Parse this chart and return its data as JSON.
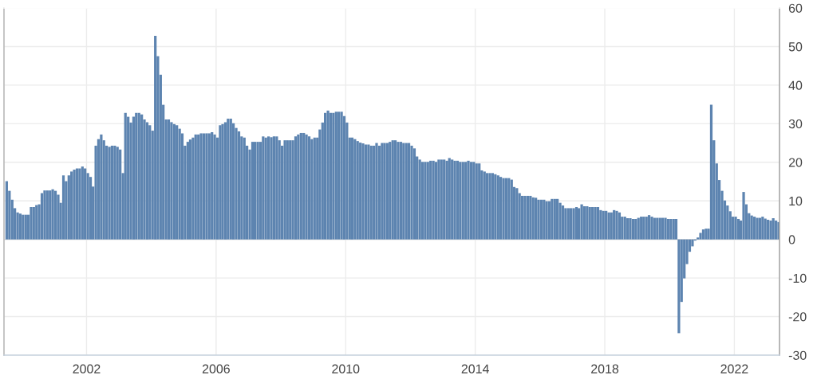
{
  "chart_data": {
    "type": "bar",
    "x": [
      "1999-07",
      "1999-08",
      "1999-09",
      "1999-10",
      "1999-11",
      "1999-12",
      "2000-01",
      "2000-02",
      "2000-03",
      "2000-04",
      "2000-05",
      "2000-06",
      "2000-07",
      "2000-08",
      "2000-09",
      "2000-10",
      "2000-11",
      "2000-12",
      "2001-01",
      "2001-02",
      "2001-03",
      "2001-04",
      "2001-05",
      "2001-06",
      "2001-07",
      "2001-08",
      "2001-09",
      "2001-10",
      "2001-11",
      "2001-12",
      "2002-01",
      "2002-02",
      "2002-03",
      "2002-04",
      "2002-05",
      "2002-06",
      "2002-07",
      "2002-08",
      "2002-09",
      "2002-10",
      "2002-11",
      "2002-12",
      "2003-01",
      "2003-02",
      "2003-03",
      "2003-04",
      "2003-05",
      "2003-06",
      "2003-07",
      "2003-08",
      "2003-09",
      "2003-10",
      "2003-11",
      "2003-12",
      "2004-01",
      "2004-02",
      "2004-03",
      "2004-04",
      "2004-05",
      "2004-06",
      "2004-07",
      "2004-08",
      "2004-09",
      "2004-10",
      "2004-11",
      "2004-12",
      "2005-01",
      "2005-02",
      "2005-03",
      "2005-04",
      "2005-05",
      "2005-06",
      "2005-07",
      "2005-08",
      "2005-09",
      "2005-10",
      "2005-11",
      "2005-12",
      "2006-01",
      "2006-02",
      "2006-03",
      "2006-04",
      "2006-05",
      "2006-06",
      "2006-07",
      "2006-08",
      "2006-09",
      "2006-10",
      "2006-11",
      "2006-12",
      "2007-01",
      "2007-02",
      "2007-03",
      "2007-04",
      "2007-05",
      "2007-06",
      "2007-07",
      "2007-08",
      "2007-09",
      "2007-10",
      "2007-11",
      "2007-12",
      "2008-01",
      "2008-02",
      "2008-03",
      "2008-04",
      "2008-05",
      "2008-06",
      "2008-07",
      "2008-08",
      "2008-09",
      "2008-10",
      "2008-11",
      "2008-12",
      "2009-01",
      "2009-02",
      "2009-03",
      "2009-04",
      "2009-05",
      "2009-06",
      "2009-07",
      "2009-08",
      "2009-09",
      "2009-10",
      "2009-11",
      "2009-12",
      "2010-01",
      "2010-02",
      "2010-03",
      "2010-04",
      "2010-05",
      "2010-06",
      "2010-07",
      "2010-08",
      "2010-09",
      "2010-10",
      "2010-11",
      "2010-12",
      "2011-01",
      "2011-02",
      "2011-03",
      "2011-04",
      "2011-05",
      "2011-06",
      "2011-07",
      "2011-08",
      "2011-09",
      "2011-10",
      "2011-11",
      "2011-12",
      "2012-01",
      "2012-02",
      "2012-03",
      "2012-04",
      "2012-05",
      "2012-06",
      "2012-07",
      "2012-08",
      "2012-09",
      "2012-10",
      "2012-11",
      "2012-12",
      "2013-01",
      "2013-02",
      "2013-03",
      "2013-04",
      "2013-05",
      "2013-06",
      "2013-07",
      "2013-08",
      "2013-09",
      "2013-10",
      "2013-11",
      "2013-12",
      "2014-01",
      "2014-02",
      "2014-03",
      "2014-04",
      "2014-05",
      "2014-06",
      "2014-07",
      "2014-08",
      "2014-09",
      "2014-10",
      "2014-11",
      "2014-12",
      "2015-01",
      "2015-02",
      "2015-03",
      "2015-04",
      "2015-05",
      "2015-06",
      "2015-07",
      "2015-08",
      "2015-09",
      "2015-10",
      "2015-11",
      "2015-12",
      "2016-01",
      "2016-02",
      "2016-03",
      "2016-04",
      "2016-05",
      "2016-06",
      "2016-07",
      "2016-08",
      "2016-09",
      "2016-10",
      "2016-11",
      "2016-12",
      "2017-01",
      "2017-02",
      "2017-03",
      "2017-04",
      "2017-05",
      "2017-06",
      "2017-07",
      "2017-08",
      "2017-09",
      "2017-10",
      "2017-11",
      "2017-12",
      "2018-01",
      "2018-02",
      "2018-03",
      "2018-04",
      "2018-05",
      "2018-06",
      "2018-07",
      "2018-08",
      "2018-09",
      "2018-10",
      "2018-11",
      "2018-12",
      "2019-01",
      "2019-02",
      "2019-03",
      "2019-04",
      "2019-05",
      "2019-06",
      "2019-07",
      "2019-08",
      "2019-09",
      "2019-10",
      "2019-11",
      "2019-12",
      "2020-01",
      "2020-02",
      "2020-03",
      "2020-04",
      "2020-05",
      "2020-06",
      "2020-07",
      "2020-08",
      "2020-09",
      "2020-10",
      "2020-11",
      "2020-12",
      "2021-01",
      "2021-02",
      "2021-03",
      "2021-04",
      "2021-05",
      "2021-06",
      "2021-07",
      "2021-08",
      "2021-09",
      "2021-10",
      "2021-11",
      "2021-12",
      "2022-01",
      "2022-02",
      "2022-03",
      "2022-04",
      "2022-05",
      "2022-06",
      "2022-07",
      "2022-08",
      "2022-09",
      "2022-10",
      "2022-11",
      "2022-12",
      "2023-01",
      "2023-02",
      "2023-03",
      "2023-04",
      "2023-05"
    ],
    "series": [
      {
        "color": "#5d84b0",
        "values": [
          15.1,
          12.6,
          10.3,
          8.1,
          7.0,
          6.7,
          6.4,
          6.4,
          6.4,
          8.4,
          8.4,
          8.9,
          9.1,
          12.0,
          12.7,
          12.7,
          12.7,
          13.0,
          12.6,
          11.6,
          9.5,
          16.6,
          15.1,
          16.6,
          17.6,
          18.1,
          18.4,
          18.4,
          18.9,
          18.4,
          17.2,
          16.2,
          13.7,
          24.3,
          26.0,
          27.2,
          25.7,
          24.3,
          24.0,
          24.3,
          24.3,
          24.0,
          23.3,
          17.2,
          32.8,
          31.8,
          30.3,
          31.8,
          32.8,
          32.8,
          32.4,
          31.1,
          30.4,
          29.6,
          28.2,
          52.8,
          47.5,
          42.7,
          34.9,
          31.1,
          31.1,
          30.4,
          29.9,
          29.6,
          28.7,
          27.5,
          24.3,
          25.3,
          25.9,
          26.4,
          27.2,
          27.2,
          27.5,
          27.5,
          27.5,
          27.5,
          27.8,
          27.2,
          26.4,
          29.6,
          29.9,
          30.4,
          31.3,
          31.3,
          30.1,
          28.9,
          28.0,
          26.7,
          26.4,
          24.3,
          23.3,
          25.3,
          25.3,
          25.3,
          25.3,
          26.7,
          26.4,
          26.7,
          26.5,
          26.7,
          26.7,
          25.7,
          24.3,
          25.7,
          25.7,
          25.7,
          25.7,
          26.7,
          27.2,
          27.6,
          27.6,
          27.2,
          26.7,
          26.0,
          26.4,
          26.4,
          28.5,
          30.3,
          32.8,
          33.4,
          32.8,
          32.8,
          33.1,
          33.1,
          33.1,
          32.0,
          30.3,
          26.4,
          26.4,
          26.0,
          25.5,
          25.1,
          24.9,
          24.6,
          24.6,
          24.3,
          24.3,
          25.0,
          24.3,
          25.0,
          25.0,
          25.0,
          25.3,
          25.7,
          25.7,
          25.3,
          25.3,
          25.0,
          25.0,
          25.0,
          24.3,
          23.6,
          21.5,
          20.7,
          20.1,
          20.1,
          20.1,
          20.4,
          20.4,
          20.1,
          20.7,
          20.7,
          20.7,
          20.4,
          21.1,
          20.7,
          20.4,
          20.4,
          20.1,
          20.1,
          20.1,
          20.4,
          20.1,
          20.1,
          19.7,
          19.7,
          17.9,
          17.6,
          17.2,
          17.2,
          17.2,
          16.9,
          16.6,
          16.2,
          15.9,
          15.9,
          15.9,
          15.5,
          13.6,
          13.3,
          12.0,
          11.3,
          11.3,
          11.3,
          11.3,
          10.9,
          10.8,
          10.3,
          10.3,
          10.3,
          9.9,
          9.9,
          10.5,
          10.5,
          10.5,
          9.5,
          8.8,
          8.1,
          8.1,
          8.1,
          8.1,
          8.4,
          8.1,
          9.1,
          8.6,
          8.6,
          8.4,
          8.4,
          8.4,
          8.4,
          7.6,
          7.4,
          7.4,
          7.0,
          7.0,
          7.6,
          7.4,
          7.0,
          5.9,
          5.9,
          5.5,
          5.5,
          5.3,
          5.3,
          5.6,
          5.9,
          5.9,
          5.9,
          6.3,
          5.9,
          5.6,
          5.6,
          5.6,
          5.6,
          5.6,
          5.3,
          5.3,
          5.3,
          5.3,
          -24.3,
          -16.2,
          -10.1,
          -6.4,
          -3.2,
          -1.8,
          -0.3,
          0.5,
          1.7,
          2.6,
          2.8,
          2.8,
          34.9,
          25.7,
          19.7,
          15.4,
          12.6,
          10.1,
          8.8,
          7.3,
          5.9,
          5.9,
          5.3,
          4.9,
          12.3,
          9.1,
          6.8,
          6.2,
          5.9,
          5.6,
          5.6,
          5.9,
          5.4,
          5.1,
          4.9,
          5.5,
          4.9,
          4.5
        ]
      }
    ],
    "xlim": [
      "1999-06-15",
      "2023-05-25"
    ],
    "xticks": [
      {
        "value": "2002",
        "label": "2002"
      },
      {
        "value": "2006",
        "label": "2006"
      },
      {
        "value": "2010",
        "label": "2010"
      },
      {
        "value": "2014",
        "label": "2014"
      },
      {
        "value": "2018",
        "label": "2018"
      },
      {
        "value": "2022",
        "label": "2022"
      }
    ],
    "ylim": [
      -30,
      60
    ],
    "yticks": [
      -30,
      -20,
      -10,
      0,
      10,
      20,
      30,
      40,
      50,
      60
    ],
    "grid": true
  }
}
